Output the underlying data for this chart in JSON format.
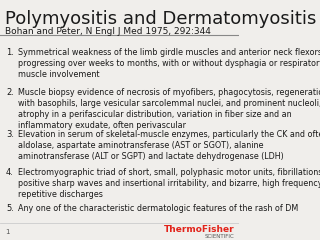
{
  "title": "Polymyositis and Dermatomyositis",
  "subtitle": "Bohan and Peter, N Engl J Med 1975, 292:344",
  "items": [
    "Symmetrical weakness of the limb girdle muscles and anterior neck flexors,\nprogressing over weeks to months, with or without dysphagia or respiratory\nmuscle involvement",
    "Muscle biopsy evidence of necrosis of myofibers, phagocytosis, regeneration\nwith basophils, large vesicular sarcolemmal nuclei, and prominent nucleoli,\natrophy in a perifascicular distribution, variation in fiber size and an\ninflammatory exudate, often perivascular",
    "Elevation in serum of skeletal-muscle enzymes, particularly the CK and often\naldolase, aspartate aminotransferase (AST or SGOT), alanine\naminotransferase (ALT or SGPT) and lactate dehydrogenase (LDH)",
    "Electromyographic triad of short, small, polyphasic motor units, fibrillations,\npositive sharp waves and insertional irritability, and bizarre, high frequency\nrepetitive discharges",
    "Any one of the characteristic dermatologic features of the rash of DM"
  ],
  "bg_color": "#f0eeeb",
  "title_color": "#1a1a1a",
  "subtitle_color": "#1a1a1a",
  "text_color": "#1a1a1a",
  "divider_color": "#888888",
  "footer_line_color": "#cccccc",
  "page_number": "1",
  "logo_text_thermo": "ThermoFisher",
  "logo_text_sci": "SCIENTIFIC",
  "logo_color_thermo": "#e2231a",
  "logo_color_sci": "#555555",
  "title_fontsize": 13,
  "subtitle_fontsize": 6.5,
  "item_fontsize": 5.8,
  "number_fontsize": 6.0
}
